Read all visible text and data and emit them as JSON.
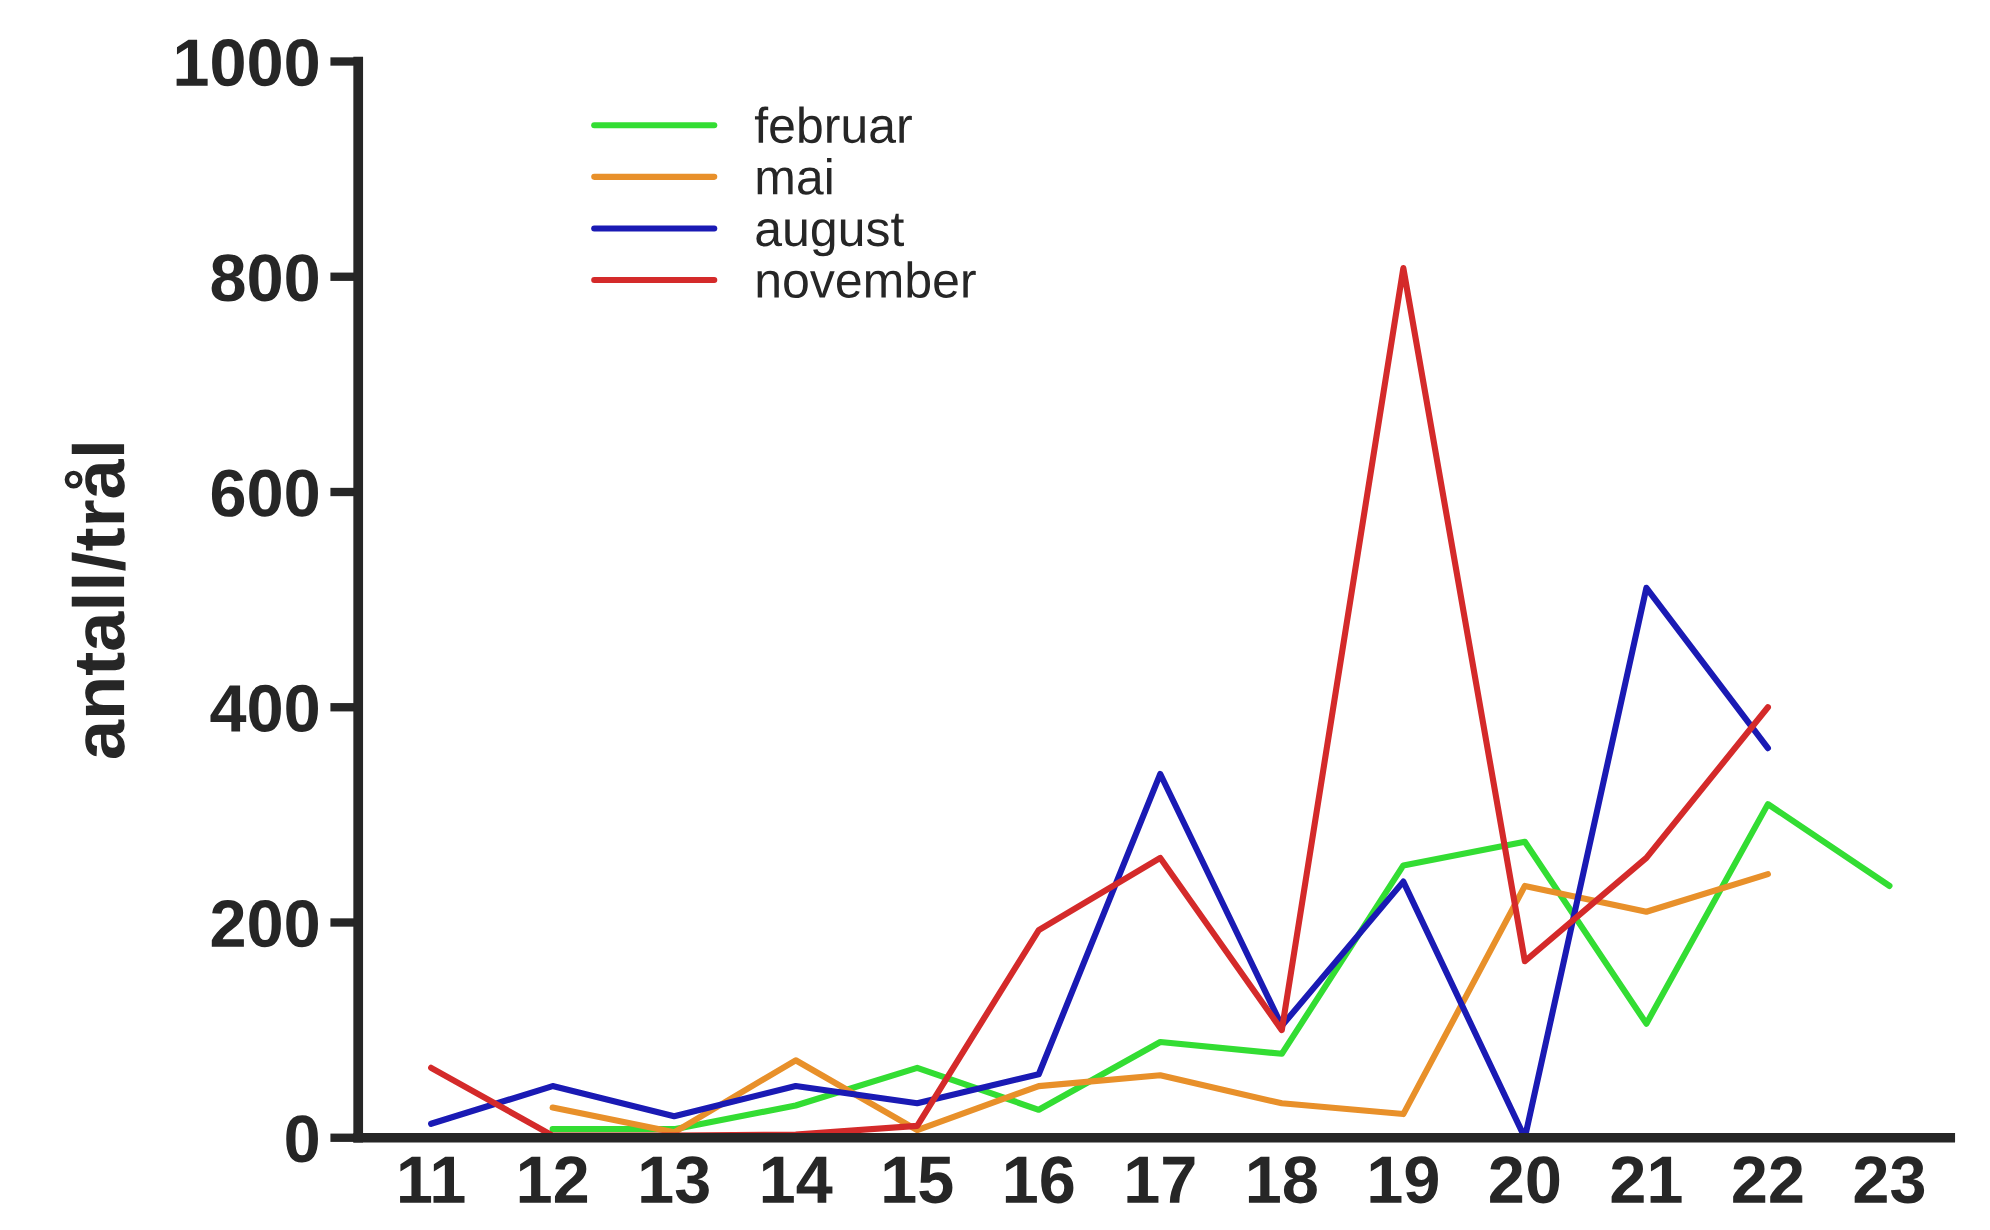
{
  "chart_data": {
    "type": "line",
    "ylabel": "antall/trål",
    "categories": [
      "11",
      "12",
      "13",
      "14",
      "15",
      "16",
      "17",
      "18",
      "19",
      "20",
      "21",
      "22",
      "23"
    ],
    "series": [
      {
        "name": "februar",
        "color": "#33dd33",
        "values": [
          null,
          8,
          8,
          30,
          65,
          26,
          89,
          78,
          253,
          275,
          106,
          310,
          234
        ]
      },
      {
        "name": "mai",
        "color": "#e8902a",
        "values": [
          null,
          28,
          5,
          72,
          7,
          48,
          58,
          32,
          22,
          234,
          210,
          245,
          null
        ]
      },
      {
        "name": "august",
        "color": "#1a1ab4",
        "values": [
          13,
          48,
          20,
          48,
          32,
          59,
          338,
          104,
          238,
          0,
          511,
          362,
          null
        ]
      },
      {
        "name": "november",
        "color": "#d42a2a",
        "values": [
          65,
          2,
          2,
          3,
          11,
          193,
          260,
          100,
          808,
          164,
          260,
          400,
          null
        ]
      }
    ],
    "ylim": [
      0,
      1000
    ],
    "yticks": [
      0,
      200,
      400,
      600,
      800,
      1000
    ],
    "grid": false,
    "legend": "top left",
    "line_style": "solid",
    "marker": "none"
  }
}
